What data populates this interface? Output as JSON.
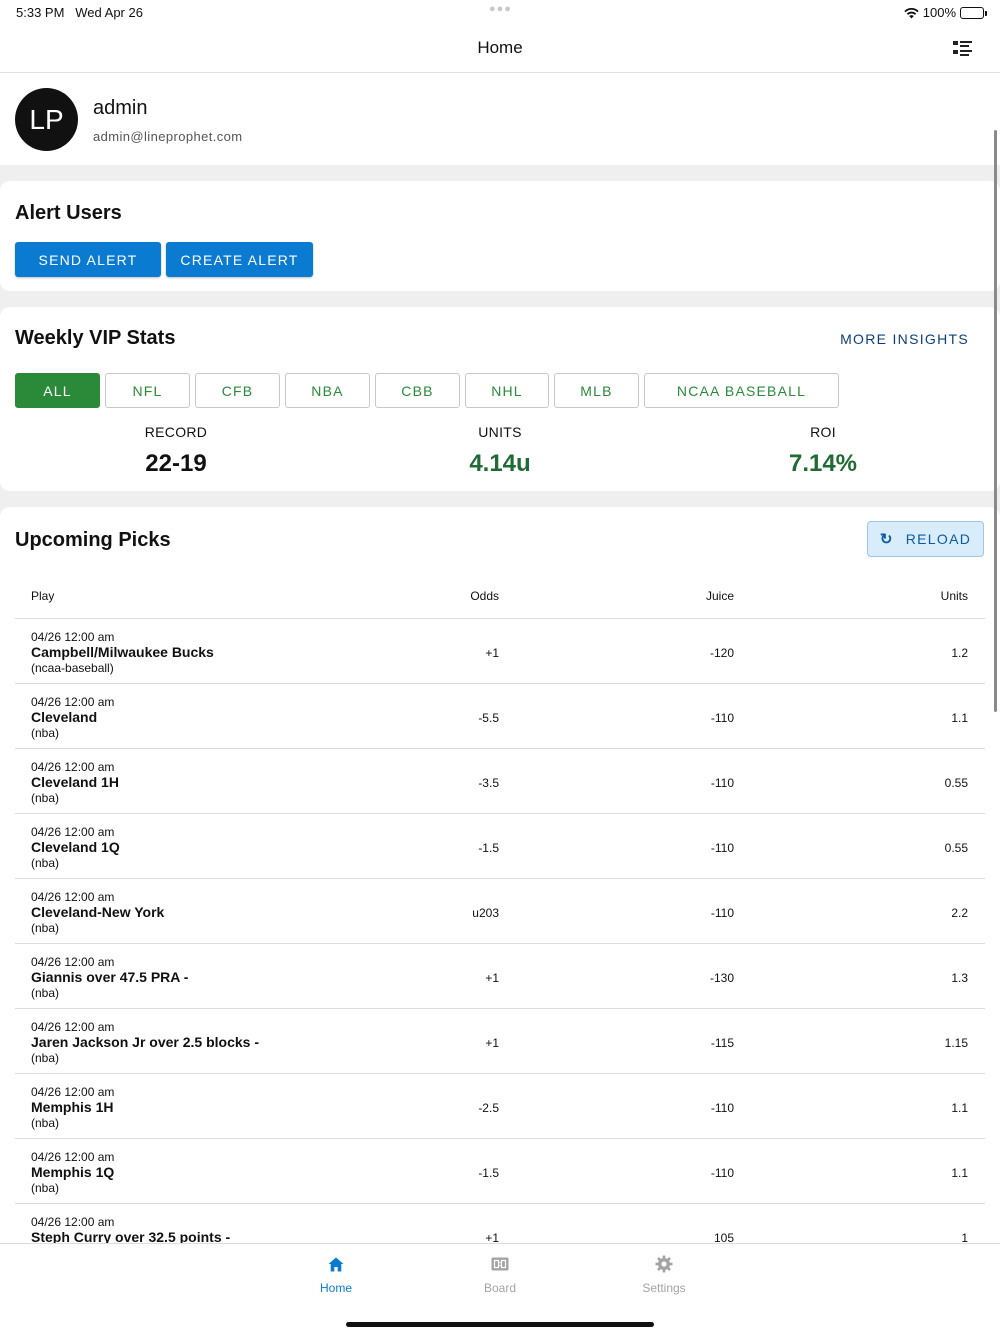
{
  "status_bar": {
    "time": "5:33 PM",
    "date": "Wed Apr 26",
    "battery": "100%",
    "battery_level": 1.0
  },
  "nav": {
    "title": "Home",
    "menu_icon": "list-menu-icon"
  },
  "profile": {
    "initials": "LP",
    "name": "admin",
    "email": "admin@lineprophet.com"
  },
  "alert_users": {
    "title": "Alert Users",
    "send_label": "SEND ALERT",
    "create_label": "CREATE ALERT"
  },
  "weekly_stats": {
    "title": "Weekly VIP Stats",
    "more_label": "MORE INSIGHTS",
    "filters": [
      "ALL",
      "NFL",
      "CFB",
      "NBA",
      "CBB",
      "NHL",
      "MLB",
      "NCAA BASEBALL"
    ],
    "selected_filter": "ALL",
    "record_label": "RECORD",
    "record_value": "22-19",
    "units_label": "UNITS",
    "units_value": "4.14u",
    "roi_label": "ROI",
    "roi_value": "7.14%"
  },
  "picks": {
    "title": "Upcoming Picks",
    "reload_label": "RELOAD",
    "headers": {
      "play": "Play",
      "odds": "Odds",
      "juice": "Juice",
      "units": "Units"
    },
    "rows": [
      {
        "date": "04/26 12:00 am",
        "play": "Campbell/Milwaukee Bucks",
        "sport": "(ncaa-baseball)",
        "odds": "+1",
        "juice": "-120",
        "units": "1.2"
      },
      {
        "date": "04/26 12:00 am",
        "play": "Cleveland",
        "sport": "(nba)",
        "odds": "-5.5",
        "juice": "-110",
        "units": "1.1"
      },
      {
        "date": "04/26 12:00 am",
        "play": "Cleveland 1H",
        "sport": "(nba)",
        "odds": "-3.5",
        "juice": "-110",
        "units": "0.55"
      },
      {
        "date": "04/26 12:00 am",
        "play": "Cleveland 1Q",
        "sport": "(nba)",
        "odds": "-1.5",
        "juice": "-110",
        "units": "0.55"
      },
      {
        "date": "04/26 12:00 am",
        "play": "Cleveland-New York",
        "sport": "(nba)",
        "odds": "u203",
        "juice": "-110",
        "units": "2.2"
      },
      {
        "date": "04/26 12:00 am",
        "play": "Giannis over 47.5 PRA -",
        "sport": "(nba)",
        "odds": "+1",
        "juice": "-130",
        "units": "1.3"
      },
      {
        "date": "04/26 12:00 am",
        "play": "Jaren Jackson Jr over 2.5 blocks -",
        "sport": "(nba)",
        "odds": "+1",
        "juice": "-115",
        "units": "1.15"
      },
      {
        "date": "04/26 12:00 am",
        "play": "Memphis 1H",
        "sport": "(nba)",
        "odds": "-2.5",
        "juice": "-110",
        "units": "1.1"
      },
      {
        "date": "04/26 12:00 am",
        "play": "Memphis 1Q",
        "sport": "(nba)",
        "odds": "-1.5",
        "juice": "-110",
        "units": "1.1"
      },
      {
        "date": "04/26 12:00 am",
        "play": "Steph Curry over 32.5 points -",
        "sport": "",
        "odds": "+1",
        "juice": "105",
        "units": "1"
      }
    ]
  },
  "tabs": [
    {
      "label": "Home",
      "icon": "home-icon",
      "active": true
    },
    {
      "label": "Board",
      "icon": "scoreboard-icon",
      "active": false
    },
    {
      "label": "Settings",
      "icon": "gear-icon",
      "active": false
    }
  ],
  "colors": {
    "primary_blue": "#0a7bd0",
    "green": "#2a8a3a",
    "dark_green": "#1f6b33",
    "navy": "#0c3f78"
  }
}
